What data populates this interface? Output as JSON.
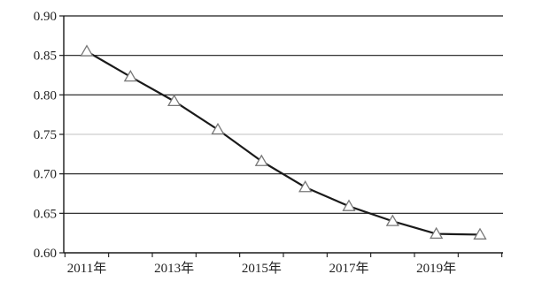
{
  "chart_data": {
    "type": "line",
    "title": "",
    "xlabel": "",
    "ylabel": "",
    "x": [
      2011,
      2012,
      2013,
      2014,
      2015,
      2016,
      2017,
      2018,
      2019,
      2020
    ],
    "x_tick_labels": [
      "2011年",
      "2013年",
      "2015年",
      "2017年",
      "2019年"
    ],
    "x_tick_values": [
      2011,
      2013,
      2015,
      2017,
      2019
    ],
    "series": [
      {
        "marker": "triangle",
        "values": [
          0.855,
          0.823,
          0.792,
          0.756,
          0.716,
          0.683,
          0.659,
          0.64,
          0.624,
          0.623
        ]
      }
    ],
    "ylim": [
      0.6,
      0.9
    ],
    "y_ticks": [
      0.6,
      0.65,
      0.7,
      0.75,
      0.8,
      0.85,
      0.9
    ],
    "y_tick_labels": [
      "0.60",
      "0.65",
      "0.70",
      "0.75",
      "0.80",
      "0.85",
      "0.90"
    ],
    "grid": "horizontal",
    "legend": "none",
    "colors": {
      "line": "#1a1a1a",
      "grid": "#1a1a1a",
      "marker_fill": "#ffffff",
      "marker_stroke": "#777777",
      "axis_text": "#222222"
    }
  }
}
